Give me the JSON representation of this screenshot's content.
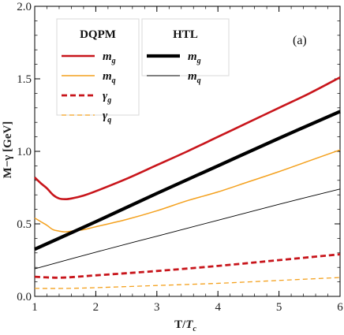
{
  "chart_data": {
    "type": "line",
    "panel_label": "(a)",
    "xlabel_main": "T/",
    "xlabel_sym": "T",
    "xlabel_sub": "c",
    "ylabel": "M−γ [GeV]",
    "xlim": [
      1,
      6
    ],
    "ylim": [
      0,
      2.0
    ],
    "x_ticks": [
      1,
      2,
      3,
      4,
      5,
      6
    ],
    "x_tick_labels": [
      "1",
      "2",
      "3",
      "4",
      "5",
      "6"
    ],
    "y_ticks": [
      0,
      0.5,
      1.0,
      1.5,
      2.0
    ],
    "y_tick_labels": [
      "0.0",
      "0.5",
      "1.0",
      "1.5",
      "2.0"
    ],
    "legends": [
      {
        "title": "DQPM",
        "entries": [
          {
            "series": 0,
            "sym": "m",
            "sub": "g"
          },
          {
            "series": 1,
            "sym": "m",
            "sub": "q"
          },
          {
            "series": 2,
            "sym": "γ",
            "sub": "g"
          },
          {
            "series": 3,
            "sym": "γ",
            "sub": "q"
          }
        ]
      },
      {
        "title": "HTL",
        "entries": [
          {
            "series": 4,
            "sym": "m",
            "sub": "g"
          },
          {
            "series": 5,
            "sym": "m",
            "sub": "q"
          }
        ]
      }
    ],
    "series": [
      {
        "color": "#c8151b",
        "width": 2.6,
        "dash": "",
        "x": [
          1.0,
          1.1,
          1.2,
          1.3,
          1.4,
          1.5,
          1.6,
          1.8,
          2.0,
          2.5,
          3.0,
          3.5,
          4.0,
          4.5,
          5.0,
          5.5,
          6.0
        ],
        "y": [
          0.82,
          0.78,
          0.745,
          0.7,
          0.675,
          0.67,
          0.675,
          0.695,
          0.725,
          0.81,
          0.905,
          1.0,
          1.1,
          1.2,
          1.3,
          1.4,
          1.51
        ]
      },
      {
        "color": "#f4a11e",
        "width": 1.5,
        "dash": "",
        "x": [
          1.0,
          1.1,
          1.2,
          1.3,
          1.4,
          1.5,
          1.6,
          1.8,
          2.0,
          2.5,
          3.0,
          3.5,
          4.0,
          4.5,
          5.0,
          5.5,
          6.0
        ],
        "y": [
          0.54,
          0.515,
          0.49,
          0.46,
          0.45,
          0.445,
          0.45,
          0.46,
          0.48,
          0.53,
          0.59,
          0.66,
          0.72,
          0.79,
          0.86,
          0.935,
          1.01
        ]
      },
      {
        "color": "#c8151b",
        "width": 2.8,
        "dash": "7,4",
        "x": [
          1.0,
          1.25,
          1.5,
          2.0,
          3.0,
          4.0,
          5.0,
          6.0
        ],
        "y": [
          0.135,
          0.13,
          0.13,
          0.145,
          0.175,
          0.21,
          0.25,
          0.29
        ]
      },
      {
        "color": "#f4a11e",
        "width": 1.3,
        "dash": "6,4",
        "x": [
          1.0,
          1.5,
          2.0,
          3.0,
          4.0,
          5.0,
          6.0
        ],
        "y": [
          0.055,
          0.055,
          0.06,
          0.075,
          0.09,
          0.11,
          0.13
        ]
      },
      {
        "color": "#000000",
        "width": 4.2,
        "dash": "",
        "x": [
          1.0,
          2.0,
          3.0,
          4.0,
          5.0,
          6.0
        ],
        "y": [
          0.325,
          0.515,
          0.71,
          0.9,
          1.09,
          1.275
        ]
      },
      {
        "color": "#000000",
        "width": 0.9,
        "dash": "",
        "x": [
          1.0,
          2.0,
          3.0,
          4.0,
          5.0,
          6.0
        ],
        "y": [
          0.19,
          0.305,
          0.415,
          0.525,
          0.635,
          0.74
        ]
      }
    ]
  }
}
